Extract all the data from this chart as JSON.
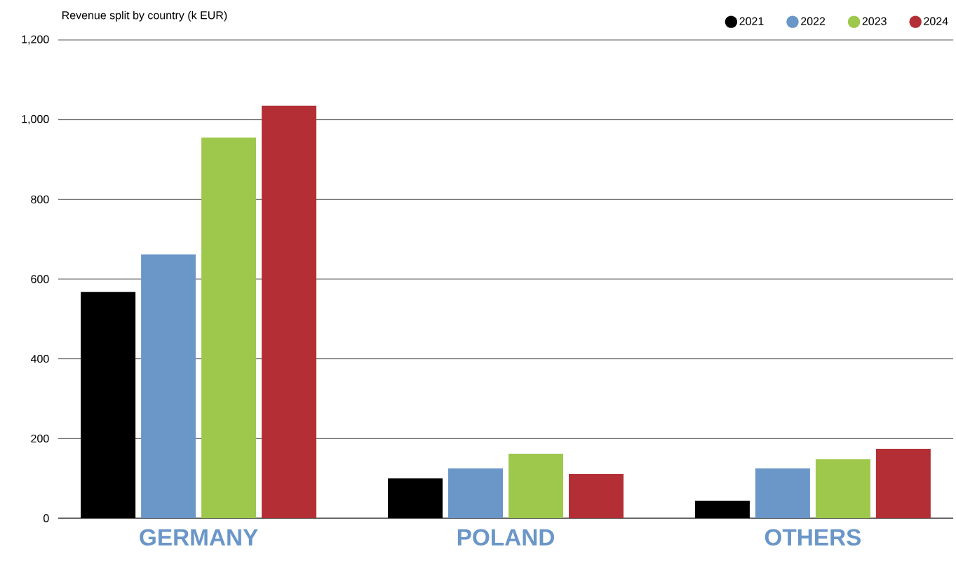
{
  "chart_data": {
    "type": "bar",
    "title": "Revenue split by country (k EUR)",
    "categories": [
      "GERMANY",
      "POLAND",
      "OTHERS"
    ],
    "series": [
      {
        "name": "2021",
        "color": "#000000",
        "values": [
          568,
          100,
          44
        ]
      },
      {
        "name": "2022",
        "color": "#6a96c8",
        "values": [
          662,
          125,
          125
        ]
      },
      {
        "name": "2023",
        "color": "#9dc84b",
        "values": [
          955,
          162,
          148
        ]
      },
      {
        "name": "2024",
        "color": "#b32f35",
        "values": [
          1035,
          111,
          174
        ]
      }
    ],
    "ylim": [
      0,
      1200
    ],
    "yticks": [
      0,
      200,
      400,
      600,
      800,
      {
        "value": 1000,
        "label": "1,000"
      },
      {
        "value": 1200,
        "label": "1,200"
      }
    ],
    "grid": "y",
    "legend": "top right"
  }
}
